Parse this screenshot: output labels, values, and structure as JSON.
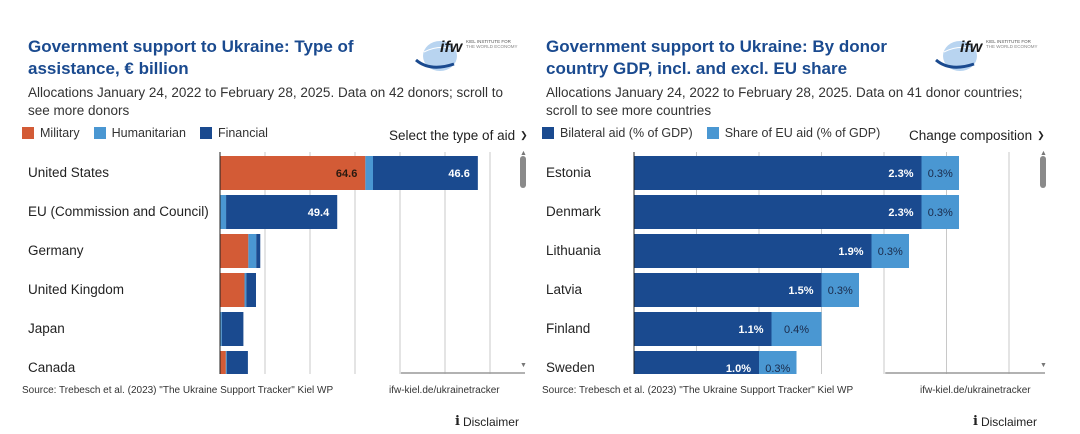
{
  "colors": {
    "military": "#d35b36",
    "humanitarian": "#4a97d2",
    "financial": "#1a4a8f",
    "bilateral": "#1a4a8f",
    "eu_share": "#4a97d2",
    "title": "#1a4a8f",
    "grid": "#c8c8c8"
  },
  "left_panel": {
    "title": "Government support to Ukraine: Type of assistance, € billion",
    "subtitle": "Allocations January 24, 2022 to February 28, 2025. Data on 42 donors; scroll to see more donors",
    "logo": {
      "mark": "ifw",
      "line1": "KIEL INSTITUTE FOR",
      "line2": "THE WORLD ECONOMY"
    },
    "legend": [
      {
        "label": "Military",
        "color_key": "military"
      },
      {
        "label": "Humanitarian",
        "color_key": "humanitarian"
      },
      {
        "label": "Financial",
        "color_key": "financial"
      }
    ],
    "dropdown_label": "Select the type of aid",
    "source": "Source: Trebesch et al. (2023) \"The Ukraine Support Tracker\" Kiel WP",
    "link": "ifw-kiel.de/ukrainetracker",
    "disclaimer": "Disclaimer"
  },
  "right_panel": {
    "title": "Government support to Ukraine: By donor country GDP, incl. and excl. EU share",
    "subtitle": "Allocations January 24, 2022 to February 28, 2025. Data on 41 donor countries; scroll to see more countries",
    "logo": {
      "mark": "ifw",
      "line1": "KIEL INSTITUTE FOR",
      "line2": "THE WORLD ECONOMY"
    },
    "legend": [
      {
        "label": "Bilateral aid (% of GDP)",
        "color_key": "bilateral"
      },
      {
        "label": "Share of EU aid (% of GDP)",
        "color_key": "eu_share"
      }
    ],
    "dropdown_label": "Change composition",
    "source": "Source: Trebesch et al. (2023) \"The Ukraine Support Tracker\" Kiel WP",
    "link": "ifw-kiel.de/ukrainetracker",
    "disclaimer": "Disclaimer"
  },
  "chart_data": [
    {
      "type": "bar",
      "orientation": "horizontal",
      "stacked": true,
      "title": "Government support to Ukraine: Type of assistance, € billion",
      "xlabel": "",
      "ylabel": "",
      "xlim": [
        0,
        120
      ],
      "grid_step": 20,
      "grid": true,
      "legend_position": "top-left",
      "categories": [
        "United States",
        "EU (Commission and Council)",
        "Germany",
        "United Kingdom",
        "Japan",
        "Canada"
      ],
      "series": [
        {
          "name": "Military",
          "color_key": "military",
          "values": [
            64.6,
            0,
            12.6,
            10.9,
            0,
            2.6
          ],
          "labels": [
            "64.6",
            "",
            "",
            "",
            "",
            ""
          ]
        },
        {
          "name": "Humanitarian",
          "color_key": "humanitarian",
          "values": [
            3.4,
            2.7,
            3.5,
            0.8,
            0.8,
            0.4
          ],
          "labels": [
            "",
            "",
            "",
            "",
            "",
            ""
          ]
        },
        {
          "name": "Financial",
          "color_key": "financial",
          "values": [
            46.6,
            49.4,
            1.8,
            4.3,
            9.6,
            9.4
          ],
          "labels": [
            "46.6",
            "49.4",
            "",
            "",
            "",
            ""
          ]
        }
      ]
    },
    {
      "type": "bar",
      "orientation": "horizontal",
      "stacked": true,
      "title": "Government support to Ukraine: By donor country GDP, incl. and excl. EU share",
      "xlabel": "",
      "ylabel": "",
      "xlim": [
        0,
        3.0
      ],
      "grid_step": 0.5,
      "grid": true,
      "legend_position": "top-left",
      "categories": [
        "Estonia",
        "Denmark",
        "Lithuania",
        "Latvia",
        "Finland",
        "Sweden"
      ],
      "series": [
        {
          "name": "Bilateral aid (% of GDP)",
          "color_key": "bilateral",
          "values": [
            2.3,
            2.3,
            1.9,
            1.5,
            1.1,
            1.0
          ],
          "labels": [
            "2.3%",
            "2.3%",
            "1.9%",
            "1.5%",
            "1.1%",
            "1.0%"
          ]
        },
        {
          "name": "Share of EU aid (% of GDP)",
          "color_key": "eu_share",
          "values": [
            0.3,
            0.3,
            0.3,
            0.3,
            0.4,
            0.3
          ],
          "labels": [
            "0.3%",
            "0.3%",
            "0.3%",
            "0.3%",
            "0.4%",
            "0.3%"
          ]
        }
      ]
    }
  ]
}
